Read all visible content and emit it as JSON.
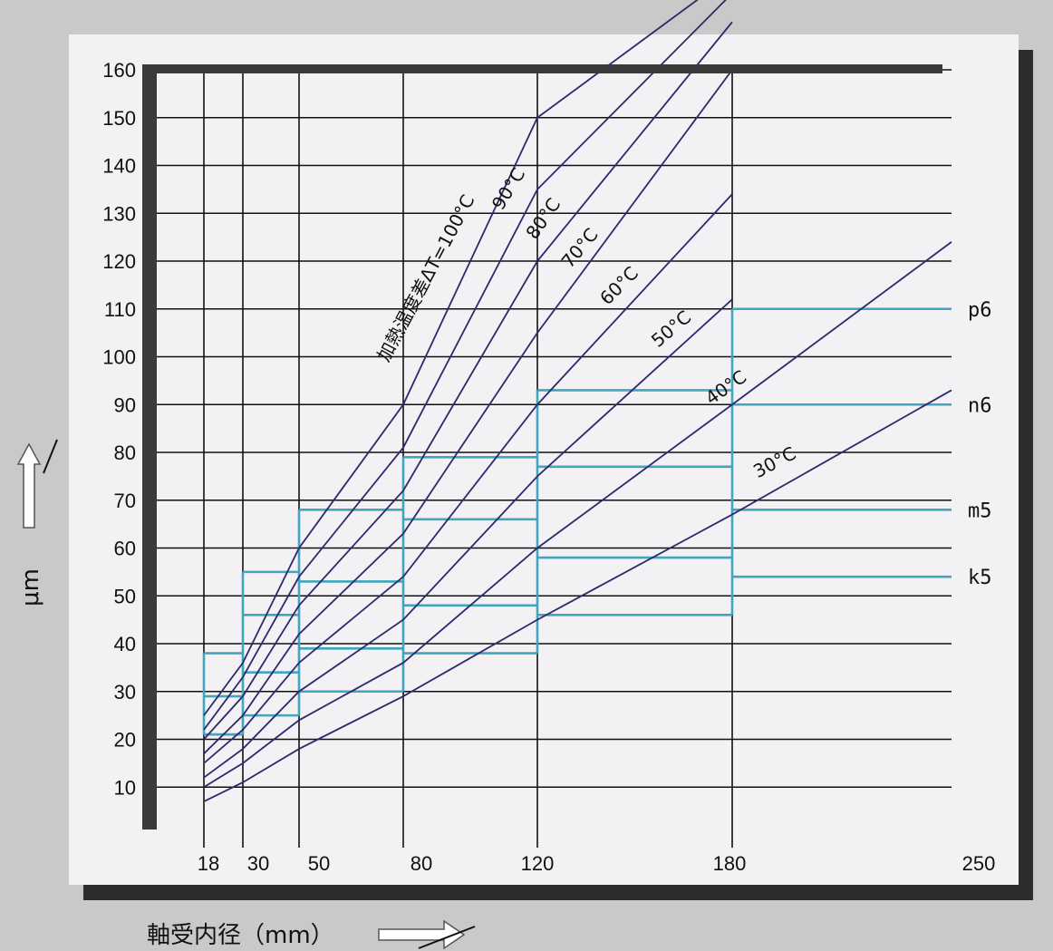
{
  "chart_data": {
    "type": "line",
    "xlabel": "軸受内径（mm）",
    "ylabel": "μm",
    "x_ticks": [
      "18",
      "30",
      "50",
      "80",
      "120",
      "180",
      "250"
    ],
    "y_ticks": [
      10,
      20,
      30,
      40,
      50,
      60,
      70,
      80,
      90,
      100,
      110,
      120,
      130,
      140,
      150,
      160
    ],
    "ylim": [
      0,
      160
    ],
    "grid": true,
    "temperature_curves": [
      {
        "name": "加熱温度差ΔT=100°C",
        "points": [
          [
            18,
            25
          ],
          [
            30,
            36
          ],
          [
            50,
            60
          ],
          [
            80,
            90
          ],
          [
            120,
            150
          ],
          [
            180,
            180
          ]
        ]
      },
      {
        "name": "90°C",
        "points": [
          [
            18,
            22
          ],
          [
            30,
            33
          ],
          [
            50,
            54
          ],
          [
            80,
            81
          ],
          [
            120,
            135
          ],
          [
            180,
            176
          ]
        ]
      },
      {
        "name": "80°C",
        "points": [
          [
            18,
            20
          ],
          [
            30,
            29
          ],
          [
            50,
            48
          ],
          [
            80,
            72
          ],
          [
            120,
            120
          ],
          [
            180,
            170
          ]
        ]
      },
      {
        "name": "70°C",
        "points": [
          [
            18,
            17
          ],
          [
            30,
            25
          ],
          [
            50,
            42
          ],
          [
            80,
            63
          ],
          [
            120,
            105
          ],
          [
            180,
            160
          ]
        ]
      },
      {
        "name": "60°C",
        "points": [
          [
            18,
            15
          ],
          [
            30,
            22
          ],
          [
            50,
            36
          ],
          [
            80,
            54
          ],
          [
            120,
            90
          ],
          [
            180,
            134
          ]
        ]
      },
      {
        "name": "50°C",
        "points": [
          [
            18,
            12
          ],
          [
            30,
            18
          ],
          [
            50,
            30
          ],
          [
            80,
            45
          ],
          [
            120,
            75
          ],
          [
            180,
            112
          ]
        ]
      },
      {
        "name": "40°C",
        "points": [
          [
            18,
            10
          ],
          [
            30,
            15
          ],
          [
            50,
            24
          ],
          [
            80,
            36
          ],
          [
            120,
            60
          ],
          [
            180,
            90
          ],
          [
            250,
            124
          ]
        ]
      },
      {
        "name": "30°C",
        "points": [
          [
            18,
            7
          ],
          [
            30,
            11
          ],
          [
            50,
            18
          ],
          [
            80,
            29
          ],
          [
            120,
            45
          ],
          [
            180,
            67
          ],
          [
            250,
            93
          ]
        ]
      }
    ],
    "fit_steps": [
      {
        "name": "p6",
        "values": [
          38,
          55,
          68,
          79,
          93,
          110
        ]
      },
      {
        "name": "n6",
        "values": [
          29,
          46,
          53,
          66,
          77,
          90
        ]
      },
      {
        "name": "m5",
        "values": [
          21,
          34,
          39,
          48,
          58,
          68
        ]
      },
      {
        "name": "k5",
        "values": [
          21,
          25,
          30,
          38,
          46,
          54
        ]
      }
    ],
    "colors": {
      "frame": "#3a3a3a",
      "grid": "#111111",
      "curve": "#2a2a6e",
      "fit": "#3fa6bd",
      "panel": "#f4f1f4"
    }
  }
}
